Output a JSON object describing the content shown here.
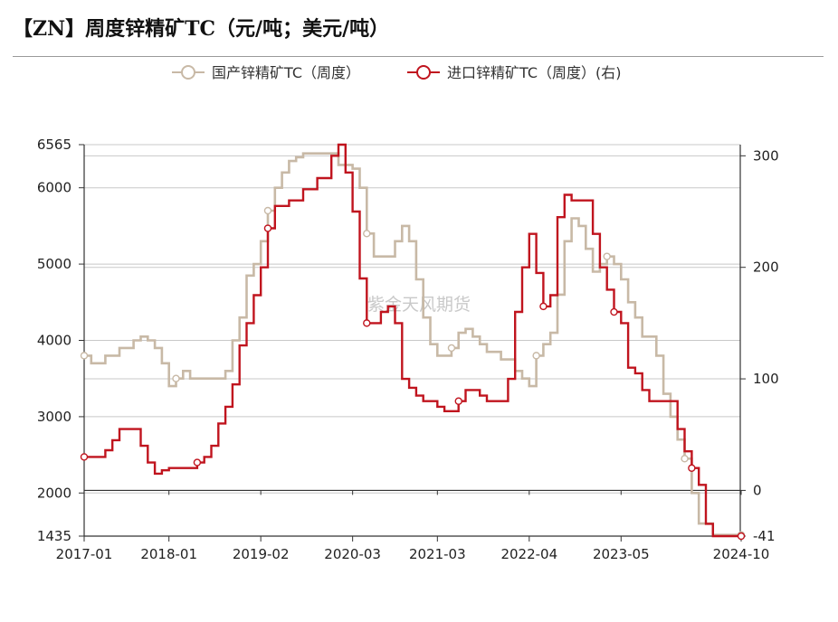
{
  "title": "【ZN】周度锌精矿TC（元/吨；美元/吨）",
  "watermark": "紫金天风期货",
  "colors": {
    "domestic": "#c8b9a6",
    "imported": "#c0141e",
    "grid": "#c8c8c8",
    "axis": "#333333"
  },
  "chart_data": {
    "type": "line",
    "title": "【ZN】周度锌精矿TC（元/吨；美元/吨）",
    "xlabel": "",
    "ylabel": "",
    "legend_position": "top-center",
    "grid": true,
    "x_ticks": [
      "2017-01",
      "2018-01",
      "2019-02",
      "2020-03",
      "2021-03",
      "2022-04",
      "2023-05",
      "2024-10"
    ],
    "x_range": [
      "2017-01",
      "2024-10"
    ],
    "y_left": {
      "ticks": [
        6565,
        6000,
        5000,
        4000,
        3000,
        2000,
        1435
      ],
      "range": [
        1435,
        6565
      ]
    },
    "y_right": {
      "ticks": [
        300,
        200,
        100,
        0,
        -41
      ],
      "range": [
        -41,
        310
      ]
    },
    "series": [
      {
        "name": "国产锌精矿TC（周度）",
        "axis": "left",
        "step": true,
        "points": [
          [
            "2017-01",
            3800
          ],
          [
            "2017-02",
            3700
          ],
          [
            "2017-04",
            3800
          ],
          [
            "2017-06",
            3900
          ],
          [
            "2017-08",
            4000
          ],
          [
            "2017-09",
            4050
          ],
          [
            "2017-10",
            4000
          ],
          [
            "2017-11",
            3900
          ],
          [
            "2017-12",
            3700
          ],
          [
            "2018-01",
            3400
          ],
          [
            "2018-02",
            3500
          ],
          [
            "2018-03",
            3600
          ],
          [
            "2018-04",
            3500
          ],
          [
            "2018-06",
            3500
          ],
          [
            "2018-09",
            3600
          ],
          [
            "2018-10",
            4000
          ],
          [
            "2018-11",
            4300
          ],
          [
            "2018-12",
            4850
          ],
          [
            "2019-01",
            5000
          ],
          [
            "2019-02",
            5300
          ],
          [
            "2019-03",
            5700
          ],
          [
            "2019-04",
            6000
          ],
          [
            "2019-05",
            6200
          ],
          [
            "2019-06",
            6350
          ],
          [
            "2019-07",
            6400
          ],
          [
            "2019-08",
            6450
          ],
          [
            "2019-12",
            6450
          ],
          [
            "2020-01",
            6300
          ],
          [
            "2020-03",
            6250
          ],
          [
            "2020-04",
            6000
          ],
          [
            "2020-05",
            5400
          ],
          [
            "2020-06",
            5100
          ],
          [
            "2020-08",
            5100
          ],
          [
            "2020-09",
            5300
          ],
          [
            "2020-10",
            5500
          ],
          [
            "2020-11",
            5300
          ],
          [
            "2020-12",
            4800
          ],
          [
            "2021-01",
            4300
          ],
          [
            "2021-02",
            3950
          ],
          [
            "2021-03",
            3800
          ],
          [
            "2021-05",
            3900
          ],
          [
            "2021-06",
            4100
          ],
          [
            "2021-07",
            4150
          ],
          [
            "2021-08",
            4050
          ],
          [
            "2021-09",
            3950
          ],
          [
            "2021-10",
            3850
          ],
          [
            "2021-12",
            3750
          ],
          [
            "2022-02",
            3600
          ],
          [
            "2022-03",
            3500
          ],
          [
            "2022-04",
            3400
          ],
          [
            "2022-05",
            3800
          ],
          [
            "2022-06",
            3950
          ],
          [
            "2022-07",
            4100
          ],
          [
            "2022-08",
            4600
          ],
          [
            "2022-09",
            5300
          ],
          [
            "2022-10",
            5600
          ],
          [
            "2022-11",
            5500
          ],
          [
            "2022-12",
            5200
          ],
          [
            "2023-01",
            4900
          ],
          [
            "2023-02",
            5000
          ],
          [
            "2023-03",
            5100
          ],
          [
            "2023-04",
            5000
          ],
          [
            "2023-05",
            4800
          ],
          [
            "2023-06",
            4500
          ],
          [
            "2023-07",
            4300
          ],
          [
            "2023-08",
            4050
          ],
          [
            "2023-10",
            3800
          ],
          [
            "2023-11",
            3300
          ],
          [
            "2023-12",
            3000
          ],
          [
            "2024-01",
            2700
          ],
          [
            "2024-02",
            2450
          ],
          [
            "2024-03",
            2000
          ],
          [
            "2024-04",
            1600
          ],
          [
            "2024-06",
            1450
          ],
          [
            "2024-10",
            1450
          ]
        ]
      },
      {
        "name": "进口锌精矿TC（周度）(右)",
        "axis": "right",
        "step": true,
        "points": [
          [
            "2017-01",
            30
          ],
          [
            "2017-04",
            36
          ],
          [
            "2017-05",
            45
          ],
          [
            "2017-06",
            55
          ],
          [
            "2017-09",
            40
          ],
          [
            "2017-10",
            25
          ],
          [
            "2017-11",
            15
          ],
          [
            "2017-12",
            18
          ],
          [
            "2018-01",
            20
          ],
          [
            "2018-04",
            20
          ],
          [
            "2018-05",
            25
          ],
          [
            "2018-06",
            30
          ],
          [
            "2018-07",
            40
          ],
          [
            "2018-08",
            60
          ],
          [
            "2018-09",
            75
          ],
          [
            "2018-10",
            95
          ],
          [
            "2018-11",
            130
          ],
          [
            "2018-12",
            150
          ],
          [
            "2019-01",
            175
          ],
          [
            "2019-02",
            200
          ],
          [
            "2019-03",
            235
          ],
          [
            "2019-04",
            255
          ],
          [
            "2019-06",
            260
          ],
          [
            "2019-08",
            270
          ],
          [
            "2019-10",
            280
          ],
          [
            "2019-12",
            300
          ],
          [
            "2020-01",
            310
          ],
          [
            "2020-02",
            285
          ],
          [
            "2020-03",
            250
          ],
          [
            "2020-04",
            190
          ],
          [
            "2020-05",
            150
          ],
          [
            "2020-07",
            160
          ],
          [
            "2020-08",
            165
          ],
          [
            "2020-09",
            150
          ],
          [
            "2020-10",
            100
          ],
          [
            "2020-11",
            92
          ],
          [
            "2020-12",
            85
          ],
          [
            "2021-01",
            80
          ],
          [
            "2021-03",
            75
          ],
          [
            "2021-04",
            71
          ],
          [
            "2021-06",
            80
          ],
          [
            "2021-07",
            90
          ],
          [
            "2021-09",
            85
          ],
          [
            "2021-10",
            80
          ],
          [
            "2021-12",
            80
          ],
          [
            "2022-01",
            100
          ],
          [
            "2022-02",
            160
          ],
          [
            "2022-03",
            200
          ],
          [
            "2022-04",
            230
          ],
          [
            "2022-05",
            195
          ],
          [
            "2022-06",
            165
          ],
          [
            "2022-07",
            175
          ],
          [
            "2022-08",
            245
          ],
          [
            "2022-09",
            265
          ],
          [
            "2022-10",
            260
          ],
          [
            "2022-11",
            260
          ],
          [
            "2022-12",
            260
          ],
          [
            "2023-01",
            230
          ],
          [
            "2023-02",
            200
          ],
          [
            "2023-03",
            180
          ],
          [
            "2023-04",
            160
          ],
          [
            "2023-05",
            150
          ],
          [
            "2023-06",
            110
          ],
          [
            "2023-07",
            105
          ],
          [
            "2023-08",
            90
          ],
          [
            "2023-09",
            80
          ],
          [
            "2023-10",
            80
          ],
          [
            "2023-12",
            80
          ],
          [
            "2024-01",
            55
          ],
          [
            "2024-02",
            35
          ],
          [
            "2024-03",
            20
          ],
          [
            "2024-04",
            5
          ],
          [
            "2024-05",
            -30
          ],
          [
            "2024-06",
            -41
          ],
          [
            "2024-10",
            -41
          ]
        ]
      }
    ]
  }
}
